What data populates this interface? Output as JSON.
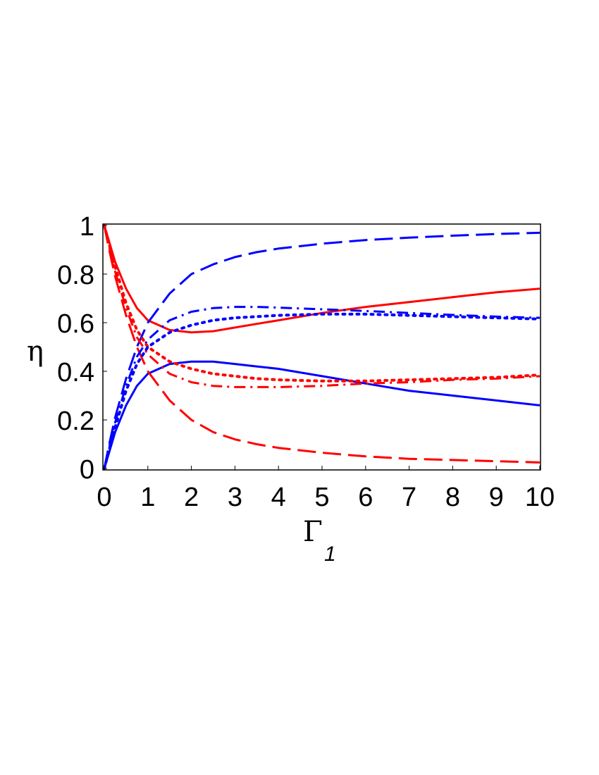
{
  "chart_data": {
    "type": "line",
    "xlabel": "Γ",
    "xlabel_subscript": "1",
    "ylabel": "η",
    "xlim": [
      0,
      10
    ],
    "ylim": [
      0,
      1
    ],
    "xticks": [
      "0",
      "1",
      "2",
      "3",
      "4",
      "5",
      "6",
      "7",
      "8",
      "9",
      "10"
    ],
    "yticks": [
      "0",
      "0.2",
      "0.4",
      "0.6",
      "0.8",
      "1"
    ],
    "grid": false,
    "x": [
      0,
      0.1,
      0.25,
      0.5,
      0.75,
      1,
      1.5,
      2,
      2.5,
      3,
      3.5,
      4,
      5,
      6,
      7,
      8,
      9,
      10
    ],
    "series": [
      {
        "color": "#ff0000",
        "style": "solid",
        "values": [
          1.0,
          0.94,
          0.85,
          0.74,
          0.66,
          0.61,
          0.57,
          0.56,
          0.565,
          0.58,
          0.595,
          0.61,
          0.64,
          0.665,
          0.685,
          0.705,
          0.725,
          0.74
        ]
      },
      {
        "color": "#0000ff",
        "style": "solid",
        "values": [
          0.0,
          0.06,
          0.15,
          0.26,
          0.34,
          0.39,
          0.43,
          0.44,
          0.44,
          0.43,
          0.42,
          0.41,
          0.38,
          0.35,
          0.32,
          0.3,
          0.28,
          0.26
        ]
      },
      {
        "color": "#ff0000",
        "style": "dashed",
        "values": [
          1.0,
          0.91,
          0.79,
          0.63,
          0.5,
          0.4,
          0.28,
          0.2,
          0.15,
          0.12,
          0.1,
          0.085,
          0.065,
          0.05,
          0.04,
          0.035,
          0.03,
          0.025
        ]
      },
      {
        "color": "#0000ff",
        "style": "dashed",
        "values": [
          0.0,
          0.09,
          0.21,
          0.37,
          0.5,
          0.6,
          0.72,
          0.8,
          0.84,
          0.87,
          0.89,
          0.905,
          0.925,
          0.94,
          0.95,
          0.958,
          0.965,
          0.97
        ]
      },
      {
        "color": "#ff0000",
        "style": "dashdot",
        "values": [
          1.0,
          0.92,
          0.81,
          0.66,
          0.54,
          0.47,
          0.39,
          0.355,
          0.34,
          0.335,
          0.335,
          0.335,
          0.34,
          0.35,
          0.355,
          0.365,
          0.37,
          0.38
        ]
      },
      {
        "color": "#0000ff",
        "style": "dashdot",
        "values": [
          0.0,
          0.08,
          0.19,
          0.34,
          0.46,
          0.53,
          0.61,
          0.645,
          0.66,
          0.665,
          0.665,
          0.662,
          0.655,
          0.648,
          0.64,
          0.632,
          0.625,
          0.62
        ]
      },
      {
        "color": "#ff0000",
        "style": "dotted",
        "values": [
          1.0,
          0.93,
          0.83,
          0.68,
          0.57,
          0.5,
          0.44,
          0.41,
          0.39,
          0.38,
          0.37,
          0.365,
          0.36,
          0.36,
          0.365,
          0.37,
          0.375,
          0.385
        ]
      },
      {
        "color": "#0000ff",
        "style": "dotted",
        "values": [
          0.0,
          0.07,
          0.17,
          0.32,
          0.43,
          0.5,
          0.56,
          0.59,
          0.61,
          0.62,
          0.625,
          0.63,
          0.635,
          0.635,
          0.63,
          0.625,
          0.62,
          0.615
        ]
      }
    ]
  }
}
